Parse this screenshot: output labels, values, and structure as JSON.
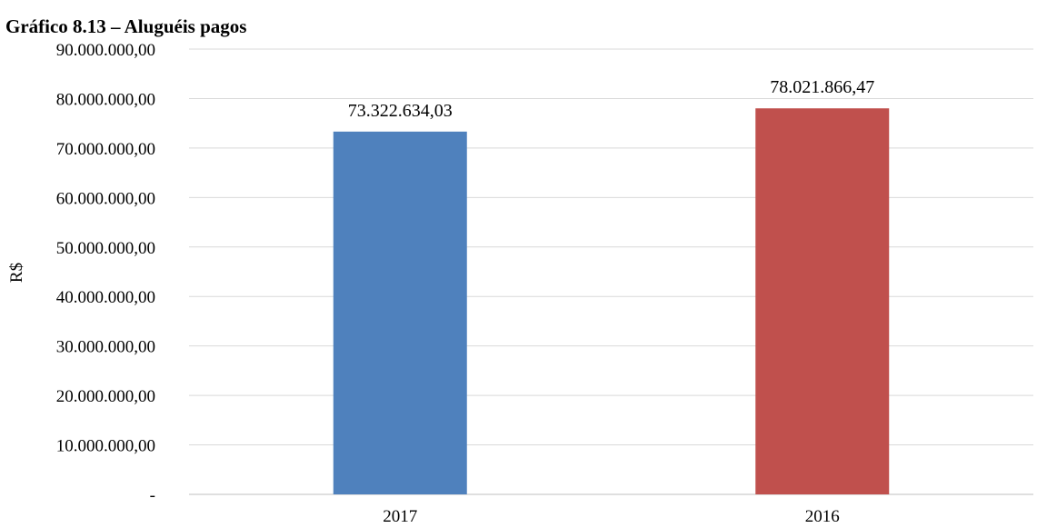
{
  "chart_data": {
    "type": "bar",
    "title": "Gráfico 8.13 – Aluguéis pagos",
    "xlabel": "",
    "ylabel": "R$",
    "categories": [
      "2017",
      "2016"
    ],
    "values": [
      73322634.03,
      78021866.47
    ],
    "value_labels": [
      "73.322.634,03",
      "78.021.866,47"
    ],
    "colors": [
      "#4f81bd",
      "#c0504d"
    ],
    "ylim": [
      0,
      90000000
    ],
    "yticks": [
      0,
      10000000,
      20000000,
      30000000,
      40000000,
      50000000,
      60000000,
      70000000,
      80000000,
      90000000
    ],
    "ytick_labels": [
      "-",
      "10.000.000,00",
      "20.000.000,00",
      "30.000.000,00",
      "40.000.000,00",
      "50.000.000,00",
      "60.000.000,00",
      "70.000.000,00",
      "80.000.000,00",
      "90.000.000,00"
    ],
    "grid": true,
    "legend": "none"
  }
}
